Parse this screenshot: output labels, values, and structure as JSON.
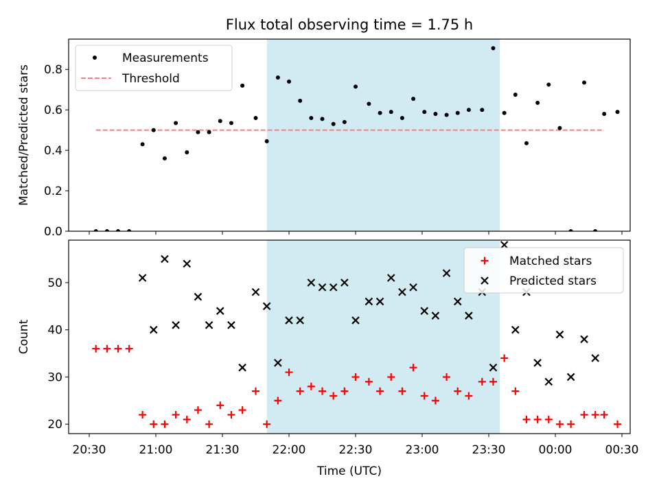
{
  "title": "Flux total observing time = 1.75 h",
  "colors": {
    "observing_window": "#add8e6",
    "measurements": "#000000",
    "threshold": "#f08080",
    "matched": "#ff0000",
    "predicted": "#000000"
  },
  "chart_data": [
    {
      "type": "scatter",
      "panel": "top",
      "ylabel": "Matched/Predicted stars",
      "xlabel": "",
      "ylim": [
        0,
        0.95
      ],
      "yticks": [
        "0.0",
        "0.2",
        "0.4",
        "0.6",
        "0.8"
      ],
      "legend": {
        "position": "top-left",
        "entries": [
          "Measurements",
          "Threshold"
        ]
      },
      "shaded_interval": [
        "21:50",
        "23:35"
      ],
      "threshold": {
        "name": "Threshold",
        "value": 0.5,
        "x_range": [
          "20:33",
          "00:22"
        ]
      },
      "series": [
        {
          "name": "Measurements",
          "points": [
            [
              "20:33",
              0.0
            ],
            [
              "20:38",
              0.0
            ],
            [
              "20:43",
              0.0
            ],
            [
              "20:48",
              0.0
            ],
            [
              "20:54",
              0.43
            ],
            [
              "20:59",
              0.5
            ],
            [
              "21:04",
              0.36
            ],
            [
              "21:09",
              0.535
            ],
            [
              "21:14",
              0.39
            ],
            [
              "21:19",
              0.49
            ],
            [
              "21:24",
              0.49
            ],
            [
              "21:29",
              0.545
            ],
            [
              "21:34",
              0.535
            ],
            [
              "21:39",
              0.72
            ],
            [
              "21:45",
              0.56
            ],
            [
              "21:50",
              0.445
            ],
            [
              "21:55",
              0.76
            ],
            [
              "22:00",
              0.74
            ],
            [
              "22:05",
              0.645
            ],
            [
              "22:10",
              0.56
            ],
            [
              "22:15",
              0.555
            ],
            [
              "22:20",
              0.53
            ],
            [
              "22:25",
              0.54
            ],
            [
              "22:30",
              0.715
            ],
            [
              "22:36",
              0.63
            ],
            [
              "22:41",
              0.585
            ],
            [
              "22:46",
              0.59
            ],
            [
              "22:51",
              0.56
            ],
            [
              "22:56",
              0.655
            ],
            [
              "23:01",
              0.59
            ],
            [
              "23:06",
              0.58
            ],
            [
              "23:11",
              0.575
            ],
            [
              "23:16",
              0.585
            ],
            [
              "23:21",
              0.6
            ],
            [
              "23:27",
              0.6
            ],
            [
              "23:32",
              0.905
            ],
            [
              "23:37",
              0.585
            ],
            [
              "23:42",
              0.675
            ],
            [
              "23:47",
              0.435
            ],
            [
              "23:52",
              0.635
            ],
            [
              "23:57",
              0.725
            ],
            [
              "00:02",
              0.51
            ],
            [
              "00:07",
              0.0
            ],
            [
              "00:13",
              0.735
            ],
            [
              "00:18",
              0.0
            ],
            [
              "00:22",
              0.58
            ],
            [
              "00:28",
              0.59
            ]
          ]
        }
      ]
    },
    {
      "type": "scatter",
      "panel": "bottom",
      "ylabel": "Count",
      "xlabel": "Time (UTC)",
      "ylim": [
        18,
        59
      ],
      "yticks": [
        "20",
        "30",
        "40",
        "50"
      ],
      "xticks": [
        "20:30",
        "21:00",
        "21:30",
        "22:00",
        "22:30",
        "23:00",
        "23:30",
        "00:00",
        "00:30"
      ],
      "legend": {
        "position": "top-right",
        "entries": [
          "Matched stars",
          "Predicted stars"
        ]
      },
      "shaded_interval": [
        "21:50",
        "23:35"
      ],
      "series": [
        {
          "name": "Matched stars",
          "points": [
            [
              "20:33",
              36
            ],
            [
              "20:38",
              36
            ],
            [
              "20:43",
              36
            ],
            [
              "20:48",
              36
            ],
            [
              "20:54",
              22
            ],
            [
              "20:59",
              20
            ],
            [
              "21:04",
              20
            ],
            [
              "21:09",
              22
            ],
            [
              "21:14",
              21
            ],
            [
              "21:19",
              23
            ],
            [
              "21:24",
              20
            ],
            [
              "21:29",
              24
            ],
            [
              "21:34",
              22
            ],
            [
              "21:39",
              23
            ],
            [
              "21:45",
              27
            ],
            [
              "21:50",
              20
            ],
            [
              "21:55",
              25
            ],
            [
              "22:00",
              31
            ],
            [
              "22:05",
              27
            ],
            [
              "22:10",
              28
            ],
            [
              "22:15",
              27
            ],
            [
              "22:20",
              26
            ],
            [
              "22:25",
              27
            ],
            [
              "22:30",
              30
            ],
            [
              "22:36",
              29
            ],
            [
              "22:41",
              27
            ],
            [
              "22:46",
              30
            ],
            [
              "22:51",
              27
            ],
            [
              "22:56",
              32
            ],
            [
              "23:01",
              26
            ],
            [
              "23:06",
              25
            ],
            [
              "23:11",
              30
            ],
            [
              "23:16",
              27
            ],
            [
              "23:21",
              26
            ],
            [
              "23:27",
              29
            ],
            [
              "23:32",
              29
            ],
            [
              "23:37",
              34
            ],
            [
              "23:42",
              27
            ],
            [
              "23:47",
              21
            ],
            [
              "23:52",
              21
            ],
            [
              "23:57",
              21
            ],
            [
              "00:02",
              20
            ],
            [
              "00:07",
              20
            ],
            [
              "00:13",
              22
            ],
            [
              "00:18",
              22
            ],
            [
              "00:22",
              22
            ],
            [
              "00:28",
              20
            ]
          ]
        },
        {
          "name": "Predicted stars",
          "points": [
            [
              "20:54",
              51
            ],
            [
              "20:59",
              40
            ],
            [
              "21:04",
              55
            ],
            [
              "21:09",
              41
            ],
            [
              "21:14",
              54
            ],
            [
              "21:19",
              47
            ],
            [
              "21:24",
              41
            ],
            [
              "21:29",
              44
            ],
            [
              "21:34",
              41
            ],
            [
              "21:39",
              32
            ],
            [
              "21:45",
              48
            ],
            [
              "21:50",
              45
            ],
            [
              "21:55",
              33
            ],
            [
              "22:00",
              42
            ],
            [
              "22:05",
              42
            ],
            [
              "22:10",
              50
            ],
            [
              "22:15",
              49
            ],
            [
              "22:20",
              49
            ],
            [
              "22:25",
              50
            ],
            [
              "22:30",
              42
            ],
            [
              "22:36",
              46
            ],
            [
              "22:41",
              46
            ],
            [
              "22:46",
              51
            ],
            [
              "22:51",
              48
            ],
            [
              "22:56",
              49
            ],
            [
              "23:01",
              44
            ],
            [
              "23:06",
              43
            ],
            [
              "23:11",
              52
            ],
            [
              "23:16",
              46
            ],
            [
              "23:21",
              43
            ],
            [
              "23:27",
              48
            ],
            [
              "23:32",
              32
            ],
            [
              "23:37",
              58
            ],
            [
              "23:42",
              40
            ],
            [
              "23:47",
              48
            ],
            [
              "23:52",
              33
            ],
            [
              "23:57",
              29
            ],
            [
              "00:02",
              39
            ],
            [
              "00:07",
              30
            ],
            [
              "00:13",
              38
            ],
            [
              "00:18",
              34
            ]
          ]
        }
      ]
    }
  ]
}
